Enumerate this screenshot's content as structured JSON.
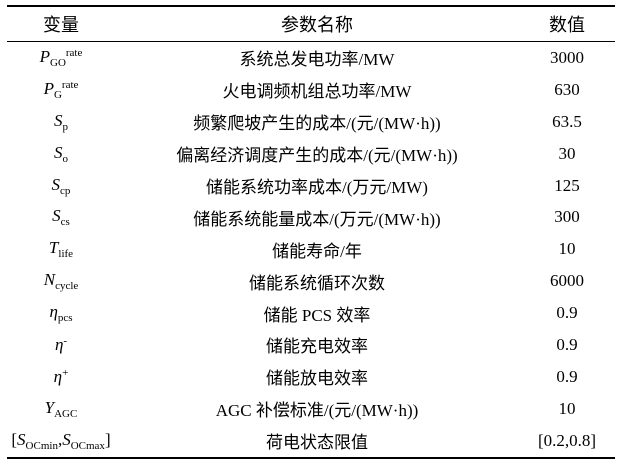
{
  "header": {
    "variable": "变量",
    "name": "参数名称",
    "value": "数值"
  },
  "rows": [
    {
      "var": [
        {
          "t": "P",
          "s": "i"
        },
        {
          "t": "GO",
          "s": "sub"
        },
        {
          "t": "rate",
          "s": "sup"
        }
      ],
      "name": "系统总发电功率/MW",
      "value": "3000"
    },
    {
      "var": [
        {
          "t": "P",
          "s": "i"
        },
        {
          "t": "G",
          "s": "sub"
        },
        {
          "t": "rate",
          "s": "sup"
        }
      ],
      "name": "火电调频机组总功率/MW",
      "value": "630"
    },
    {
      "var": [
        {
          "t": "S",
          "s": "i"
        },
        {
          "t": "p",
          "s": "sub"
        }
      ],
      "name": "频繁爬坡产生的成本/(元/(MW·h))",
      "value": "63.5"
    },
    {
      "var": [
        {
          "t": "S",
          "s": "i"
        },
        {
          "t": "o",
          "s": "sub"
        }
      ],
      "name": "偏离经济调度产生的成本/(元/(MW·h))",
      "value": "30"
    },
    {
      "var": [
        {
          "t": "S",
          "s": "i"
        },
        {
          "t": "cp",
          "s": "sub"
        }
      ],
      "name": "储能系统功率成本/(万元/MW)",
      "value": "125"
    },
    {
      "var": [
        {
          "t": "S",
          "s": "i"
        },
        {
          "t": "cs",
          "s": "sub"
        }
      ],
      "name": "储能系统能量成本/(万元/(MW·h))",
      "value": "300"
    },
    {
      "var": [
        {
          "t": "T",
          "s": "i"
        },
        {
          "t": "life",
          "s": "sub"
        }
      ],
      "name": "储能寿命/年",
      "value": "10"
    },
    {
      "var": [
        {
          "t": "N",
          "s": "i"
        },
        {
          "t": "cycle",
          "s": "sub"
        }
      ],
      "name": "储能系统循环次数",
      "value": "6000"
    },
    {
      "var": [
        {
          "t": "η",
          "s": "i"
        },
        {
          "t": "pcs",
          "s": "sub"
        }
      ],
      "name": "储能 PCS 效率",
      "value": "0.9"
    },
    {
      "var": [
        {
          "t": "η",
          "s": "i"
        },
        {
          "t": "-",
          "s": "sup"
        }
      ],
      "name": "储能充电效率",
      "value": "0.9"
    },
    {
      "var": [
        {
          "t": "η",
          "s": "i"
        },
        {
          "t": "+",
          "s": "sup"
        }
      ],
      "name": "储能放电效率",
      "value": "0.9"
    },
    {
      "var": [
        {
          "t": "Y",
          "s": "i"
        },
        {
          "t": "AGC",
          "s": "sub"
        }
      ],
      "name": "AGC 补偿标准/(元/(MW·h))",
      "value": "10"
    },
    {
      "var": [
        {
          "t": "[",
          "s": "n"
        },
        {
          "t": "S",
          "s": "i"
        },
        {
          "t": "OCmin",
          "s": "sub"
        },
        {
          "t": ",",
          "s": "n"
        },
        {
          "t": "S",
          "s": "i"
        },
        {
          "t": "OCmax",
          "s": "sub"
        },
        {
          "t": "]",
          "s": "n"
        }
      ],
      "name": "荷电状态限值",
      "value": "[0.2,0.8]"
    }
  ]
}
